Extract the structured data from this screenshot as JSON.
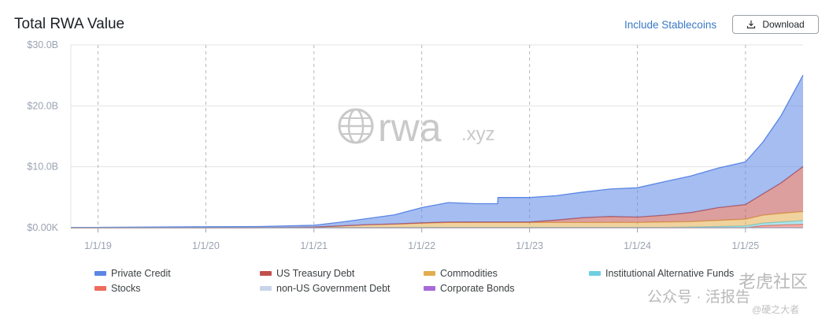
{
  "header": {
    "title": "Total RWA Value",
    "include_label": "Include Stablecoins",
    "download_label": "Download"
  },
  "watermark": {
    "logo_text": "rwa",
    "logo_suffix": ".xyz",
    "overlay_line1": "公众号 · 活报告",
    "overlay_line2": "老虎社区",
    "overlay_line3": "@硬之大者"
  },
  "chart_data": {
    "type": "area",
    "stacked": true,
    "ylim": [
      0,
      30
    ],
    "yticks": [
      "$0.00K",
      "$10.0B",
      "$20.0B",
      "$30.0B"
    ],
    "xticks": [
      "1/1/19",
      "1/1/20",
      "1/1/21",
      "1/1/22",
      "1/1/23",
      "1/1/24",
      "1/1/25"
    ],
    "x_dates": [
      "2018-10-01",
      "2019-01-01",
      "2019-07-01",
      "2020-01-01",
      "2020-07-01",
      "2021-01-01",
      "2021-04-01",
      "2021-07-01",
      "2021-10-01",
      "2022-01-01",
      "2022-04-01",
      "2022-07-01",
      "2022-09-15",
      "2022-09-16",
      "2023-01-01",
      "2023-04-01",
      "2023-07-01",
      "2023-10-01",
      "2024-01-01",
      "2024-04-01",
      "2024-07-01",
      "2024-10-01",
      "2025-01-01",
      "2025-03-01",
      "2025-05-01",
      "2025-07-15"
    ],
    "series": [
      {
        "name": "Private Credit",
        "color": "#5b86e5",
        "values": [
          0.05,
          0.05,
          0.1,
          0.15,
          0.2,
          0.3,
          0.6,
          1.0,
          1.5,
          2.5,
          3.2,
          3.0,
          3.0,
          4.0,
          4.0,
          4.0,
          4.2,
          4.5,
          4.8,
          5.5,
          6.0,
          6.5,
          7.0,
          8.5,
          11.0,
          15.0
        ]
      },
      {
        "name": "US Treasury Debt",
        "color": "#c0504d",
        "values": [
          0,
          0,
          0,
          0,
          0,
          0,
          0,
          0,
          0.02,
          0.05,
          0.08,
          0.1,
          0.1,
          0.1,
          0.1,
          0.4,
          0.8,
          1.0,
          0.9,
          1.1,
          1.5,
          2.1,
          2.4,
          3.5,
          5.0,
          7.4
        ]
      },
      {
        "name": "Commodities",
        "color": "#e3ad4f",
        "values": [
          0,
          0,
          0,
          0,
          0,
          0.1,
          0.3,
          0.5,
          0.6,
          0.7,
          0.8,
          0.8,
          0.8,
          0.8,
          0.8,
          0.8,
          0.8,
          0.8,
          0.8,
          0.9,
          0.9,
          1.0,
          1.1,
          1.3,
          1.4,
          1.5
        ]
      },
      {
        "name": "Institutional Alternative Funds",
        "color": "#6fcfe0",
        "values": [
          0,
          0,
          0,
          0,
          0,
          0,
          0,
          0,
          0,
          0.05,
          0.05,
          0.05,
          0.05,
          0.05,
          0.05,
          0.05,
          0.05,
          0.05,
          0.05,
          0.05,
          0.1,
          0.2,
          0.3,
          0.4,
          0.5,
          0.6
        ]
      },
      {
        "name": "Stocks",
        "color": "#ef6b5b",
        "values": [
          0,
          0,
          0,
          0,
          0,
          0,
          0,
          0,
          0,
          0,
          0,
          0,
          0,
          0,
          0,
          0,
          0,
          0,
          0,
          0,
          0,
          0,
          0,
          0.3,
          0.4,
          0.5
        ]
      },
      {
        "name": "non-US Government Debt",
        "color": "#c9d4ea",
        "values": [
          0,
          0,
          0,
          0,
          0,
          0,
          0,
          0,
          0,
          0,
          0,
          0,
          0,
          0,
          0,
          0,
          0,
          0,
          0,
          0,
          0,
          0,
          0,
          0.05,
          0.05,
          0.05
        ]
      },
      {
        "name": "Corporate Bonds",
        "color": "#a86ad8",
        "values": [
          0,
          0,
          0,
          0,
          0,
          0,
          0,
          0,
          0,
          0,
          0,
          0,
          0,
          0,
          0,
          0,
          0,
          0,
          0,
          0,
          0,
          0,
          0,
          0,
          0,
          0
        ]
      }
    ],
    "grid": {
      "x": true,
      "y": true
    },
    "legend_position": "bottom"
  }
}
